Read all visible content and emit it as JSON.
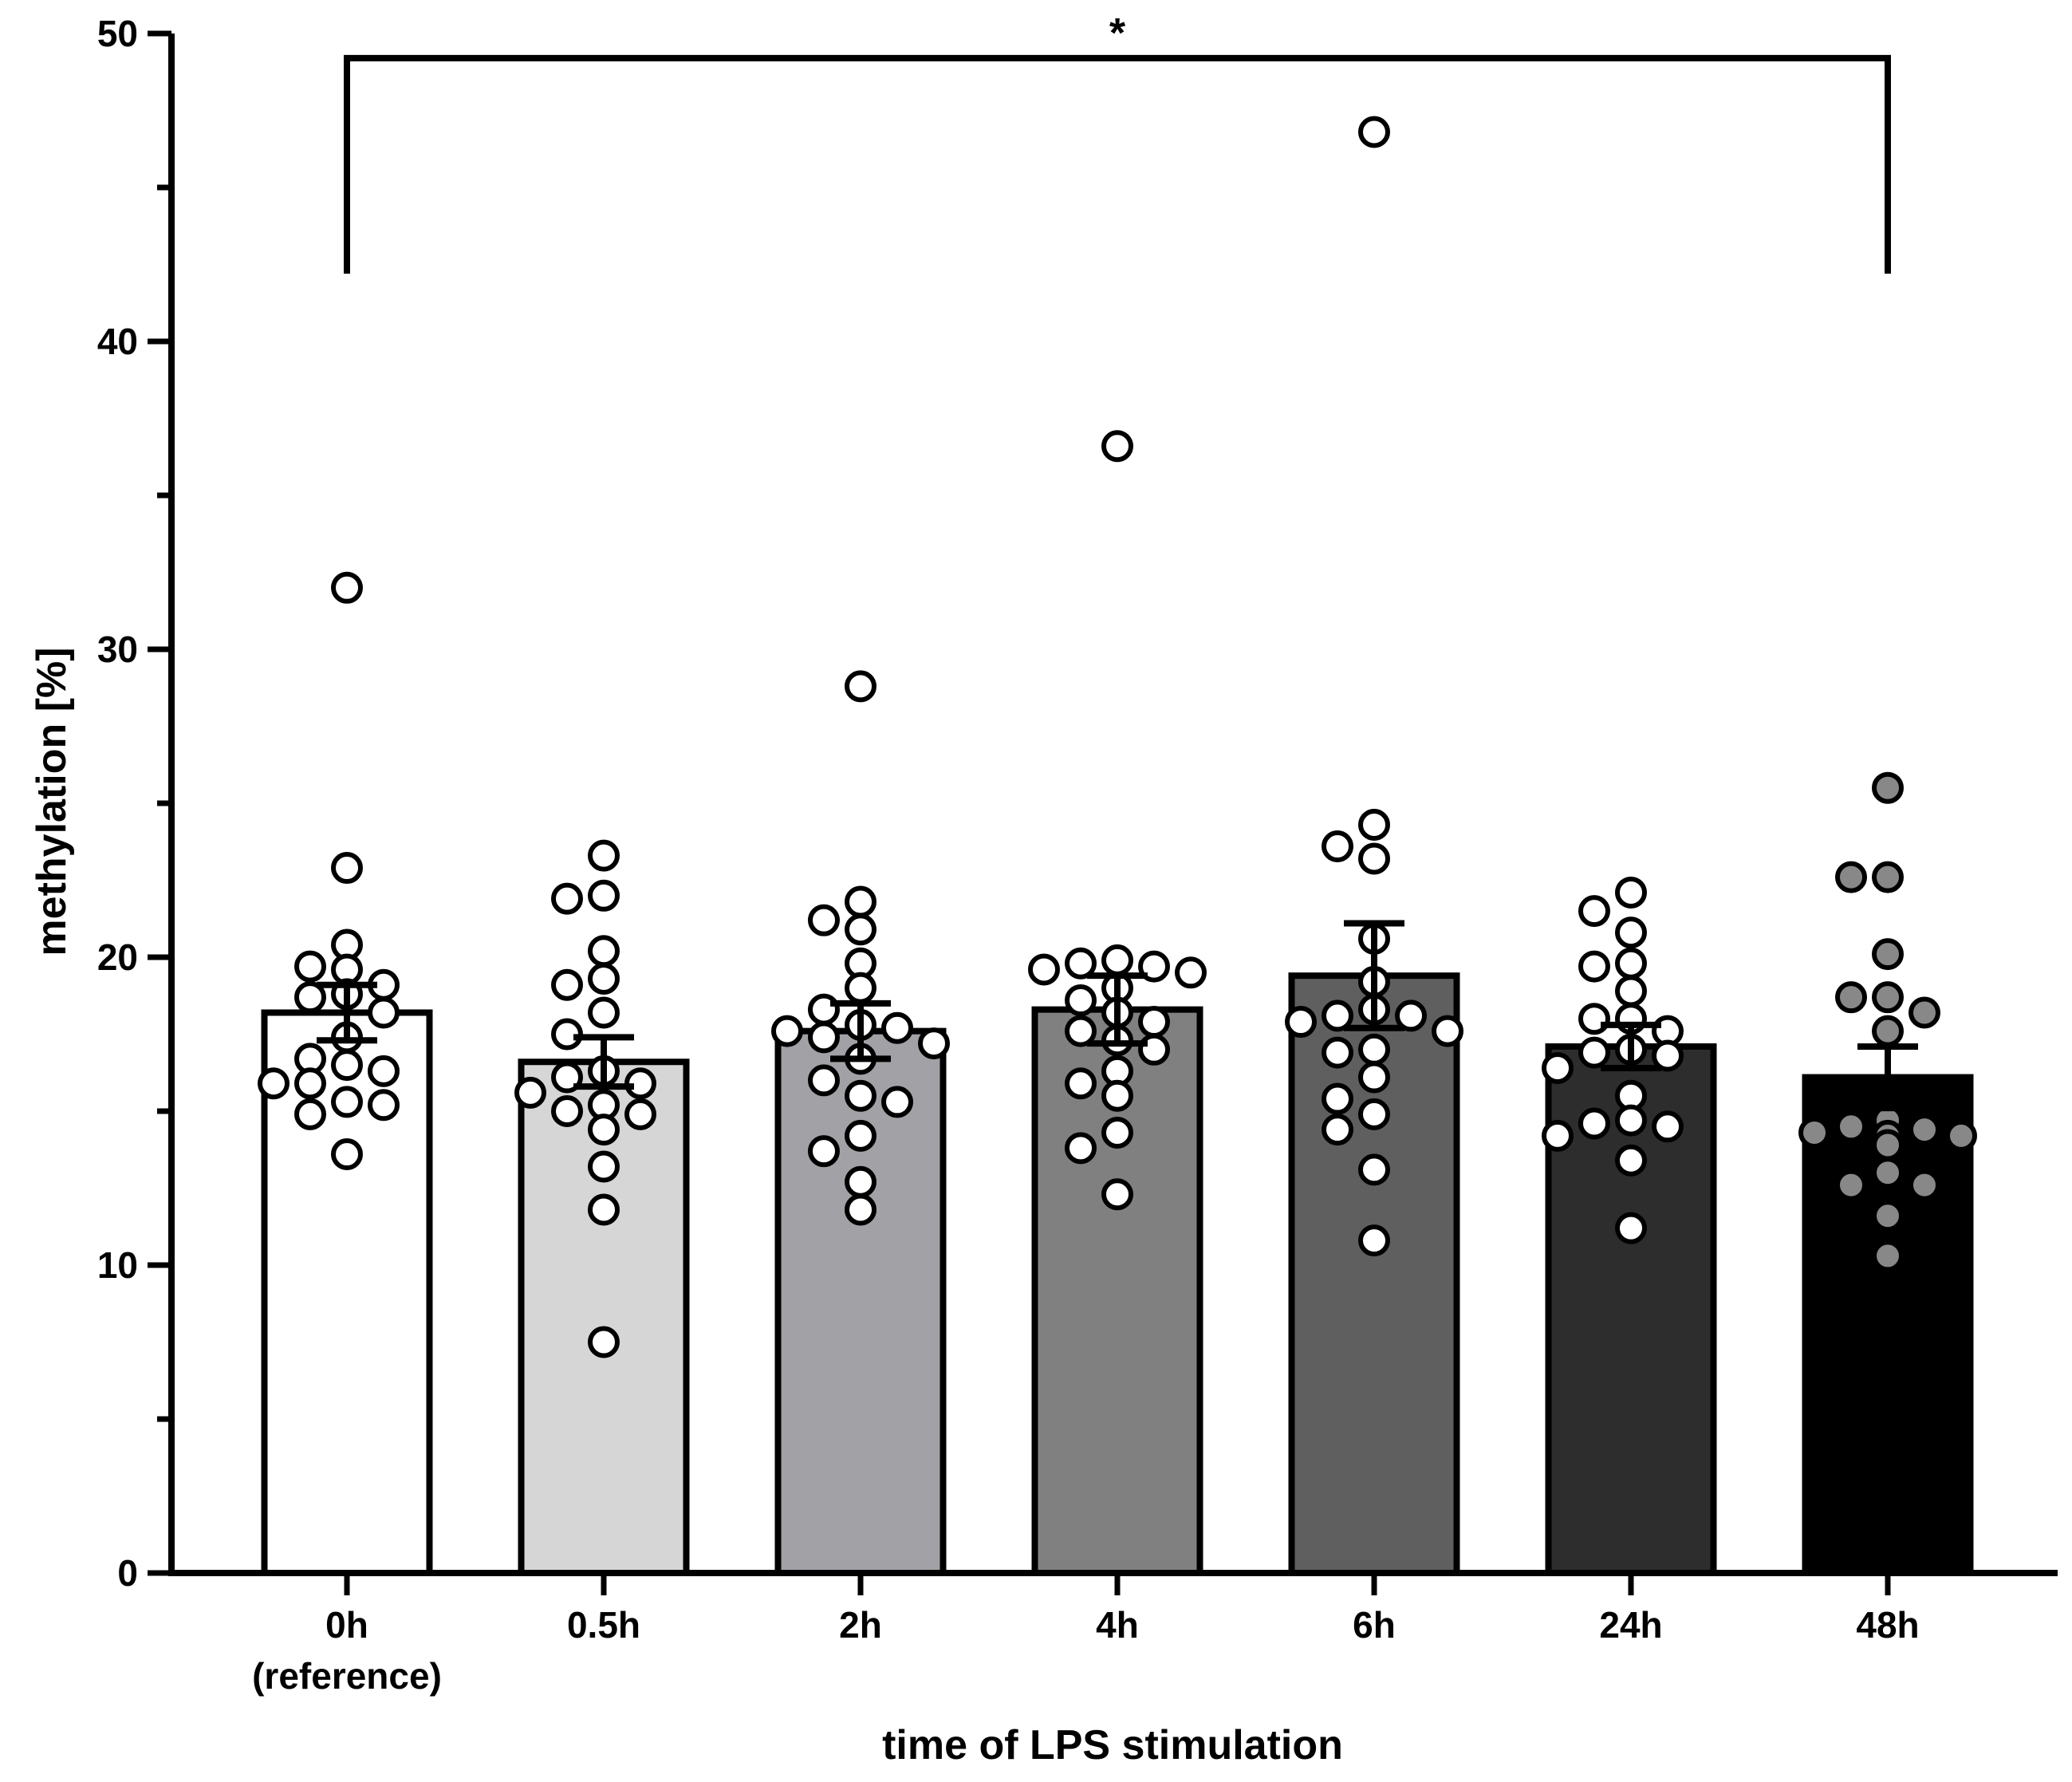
{
  "chart_data": {
    "type": "bar",
    "title": "",
    "xlabel": "time of LPS stimulation",
    "ylabel": "methylation [%]",
    "ylim": [
      0,
      50
    ],
    "yticks": [
      0,
      10,
      20,
      30,
      40,
      50
    ],
    "yticks_minor": [
      5,
      15,
      25,
      35,
      45
    ],
    "categories": [
      [
        "0h",
        "(reference)"
      ],
      [
        "0.5h"
      ],
      [
        "2h"
      ],
      [
        "4h"
      ],
      [
        "6h"
      ],
      [
        "24h"
      ],
      [
        "48h"
      ]
    ],
    "series": [
      {
        "name": "mean",
        "values": [
          18.2,
          16.6,
          17.6,
          18.3,
          19.4,
          17.1,
          16.1
        ],
        "sem": [
          0.9,
          0.8,
          0.9,
          1.1,
          1.7,
          0.7,
          1.0
        ],
        "bar_colors": [
          "#ffffff",
          "#d6d6d6",
          "#a2a1a6",
          "#808080",
          "#5f5f5f",
          "#2d2d2d",
          "#000000"
        ],
        "point_fill": [
          "#ffffff",
          "#ffffff",
          "#ffffff",
          "#ffffff",
          "#ffffff",
          "#ffffff",
          "#888888"
        ],
        "points": [
          [
            32.0,
            22.9,
            20.4,
            19.7,
            19.6,
            19.1,
            18.8,
            18.7,
            18.2,
            17.4,
            16.7,
            16.5,
            16.3,
            15.9,
            15.9,
            15.3,
            15.2,
            14.9,
            13.6
          ],
          [
            23.3,
            22.0,
            21.9,
            20.2,
            19.3,
            19.1,
            18.2,
            17.5,
            16.3,
            16.1,
            15.9,
            15.6,
            15.2,
            15.0,
            14.9,
            14.4,
            13.2,
            11.8,
            7.5
          ],
          [
            28.8,
            21.8,
            21.2,
            20.9,
            19.8,
            19.0,
            18.3,
            17.8,
            17.7,
            17.6,
            17.4,
            17.2,
            16.7,
            16.0,
            15.5,
            15.3,
            14.2,
            13.7,
            12.7,
            11.8
          ],
          [
            36.6,
            19.9,
            19.8,
            19.7,
            19.6,
            19.5,
            19.0,
            18.6,
            18.2,
            17.9,
            17.6,
            17.3,
            17.0,
            16.3,
            15.9,
            15.5,
            14.3,
            13.8,
            12.3
          ],
          [
            46.8,
            24.3,
            23.6,
            23.2,
            20.6,
            19.2,
            18.3,
            18.1,
            18.1,
            17.9,
            17.6,
            17.0,
            16.9,
            16.1,
            15.4,
            14.9,
            14.4,
            13.1,
            10.8
          ],
          [
            22.1,
            21.5,
            20.8,
            19.8,
            19.7,
            18.9,
            18.0,
            18.0,
            17.6,
            17.0,
            16.9,
            16.8,
            16.4,
            15.5,
            14.7,
            14.6,
            14.5,
            14.2,
            13.4,
            11.2
          ],
          [
            25.5,
            22.6,
            22.6,
            20.1,
            18.7,
            18.7,
            18.2,
            17.6,
            14.7,
            14.5,
            14.4,
            14.3,
            14.2,
            14.2,
            13.9,
            13.0,
            12.6,
            12.6,
            11.6,
            10.3
          ]
        ]
      }
    ],
    "significance": [
      {
        "from": 0,
        "to": 6,
        "label": "*",
        "bracket_y": 49.2,
        "drop_to": 42.2
      }
    ]
  }
}
